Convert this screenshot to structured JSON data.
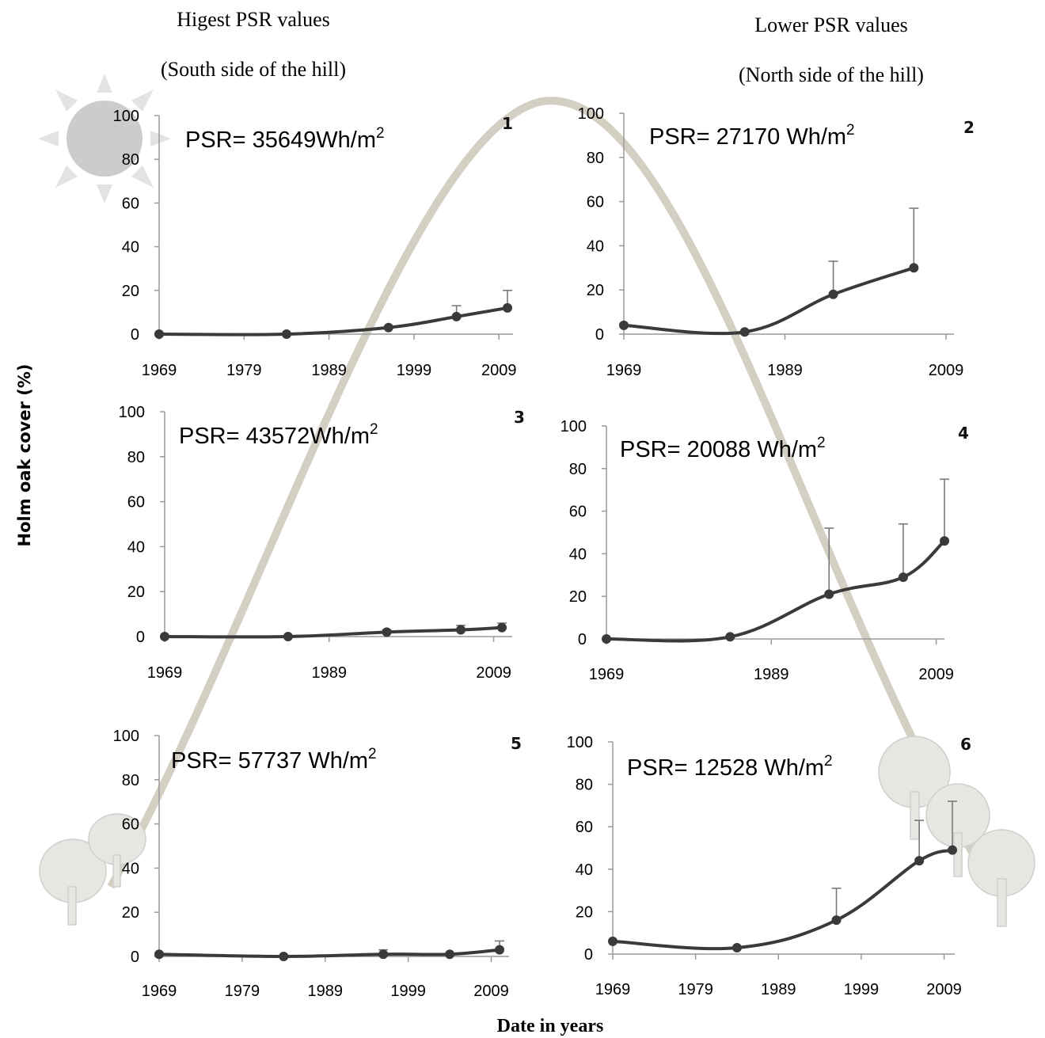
{
  "headers": {
    "left_line1": "Higest PSR values",
    "left_line2": "(South side of the hill)",
    "right_line1": "Lower PSR values",
    "right_line2": "(North side of the hill)"
  },
  "ylabel": "Holm oak cover (%)",
  "xlabel": "Date in years",
  "colors": {
    "line": "#3a3a3a",
    "error_bar": "#7a7a7a",
    "axis": "#9a9a9a",
    "hill_arc": "#cfcbc0",
    "sun": "#c8c8c8"
  },
  "decorations": [
    "sun-icon",
    "hill-arc",
    "tree-icon"
  ],
  "chart_data": [
    {
      "type": "line",
      "panel": "1",
      "psr_text": "PSR= 35649Wh/m",
      "psr_sup": "2",
      "xticks": [
        1969,
        1979,
        1989,
        1999,
        2009
      ],
      "xlim": [
        1969,
        2010
      ],
      "ylim": [
        0,
        100
      ],
      "yticks": [
        0,
        20,
        40,
        60,
        80,
        100
      ],
      "x": [
        1969,
        1984,
        1996,
        2004,
        2010
      ],
      "y": [
        0,
        0,
        3,
        8,
        12
      ],
      "err": [
        0,
        0,
        0,
        5,
        8
      ]
    },
    {
      "type": "line",
      "panel": "2",
      "psr_text": "PSR= 27170 Wh/m",
      "psr_sup": "2",
      "xticks": [
        1969,
        1989,
        2009
      ],
      "xlim": [
        1969,
        2009
      ],
      "ylim": [
        0,
        100
      ],
      "yticks": [
        0,
        20,
        40,
        60,
        80,
        100
      ],
      "x": [
        1969,
        1984,
        1995,
        2005
      ],
      "y": [
        4,
        1,
        18,
        30
      ],
      "err": [
        0,
        0,
        15,
        27
      ]
    },
    {
      "type": "line",
      "panel": "3",
      "psr_text": "PSR= 43572Wh/m",
      "psr_sup": "2",
      "xticks": [
        1969,
        1989,
        2009
      ],
      "xlim": [
        1969,
        2010
      ],
      "ylim": [
        0,
        100
      ],
      "yticks": [
        0,
        20,
        40,
        60,
        80,
        100
      ],
      "x": [
        1969,
        1984,
        1996,
        2005,
        2010
      ],
      "y": [
        0,
        0,
        2,
        3,
        4
      ],
      "err": [
        0,
        0,
        1,
        2,
        2
      ]
    },
    {
      "type": "line",
      "panel": "4",
      "psr_text": "PSR= 20088 Wh/m",
      "psr_sup": "2",
      "xticks": [
        1969,
        1989,
        2009
      ],
      "xlim": [
        1969,
        2010
      ],
      "ylim": [
        0,
        100
      ],
      "yticks": [
        0,
        20,
        40,
        60,
        80,
        100
      ],
      "x": [
        1969,
        1984,
        1996,
        2005,
        2010
      ],
      "y": [
        0,
        1,
        21,
        29,
        46
      ],
      "err": [
        0,
        0,
        31,
        25,
        29
      ]
    },
    {
      "type": "line",
      "panel": "5",
      "psr_text": "PSR= 57737 Wh/m",
      "psr_sup": "2",
      "xticks": [
        1969,
        1979,
        1989,
        1999,
        2009
      ],
      "xlim": [
        1969,
        2010
      ],
      "ylim": [
        0,
        100
      ],
      "yticks": [
        0,
        20,
        40,
        60,
        80,
        100
      ],
      "x": [
        1969,
        1984,
        1996,
        2004,
        2010
      ],
      "y": [
        1,
        0,
        1,
        1,
        3
      ],
      "err": [
        0,
        0,
        2,
        0,
        4
      ]
    },
    {
      "type": "line",
      "panel": "6",
      "psr_text": "PSR= 12528 Wh/m",
      "psr_sup": "2",
      "xticks": [
        1969,
        1979,
        1989,
        1999,
        2009
      ],
      "xlim": [
        1969,
        2010
      ],
      "ylim": [
        0,
        100
      ],
      "yticks": [
        0,
        20,
        40,
        60,
        80,
        100
      ],
      "x": [
        1969,
        1984,
        1996,
        2006,
        2010
      ],
      "y": [
        6,
        3,
        16,
        44,
        49
      ],
      "err": [
        0,
        0,
        15,
        19,
        23
      ]
    }
  ]
}
